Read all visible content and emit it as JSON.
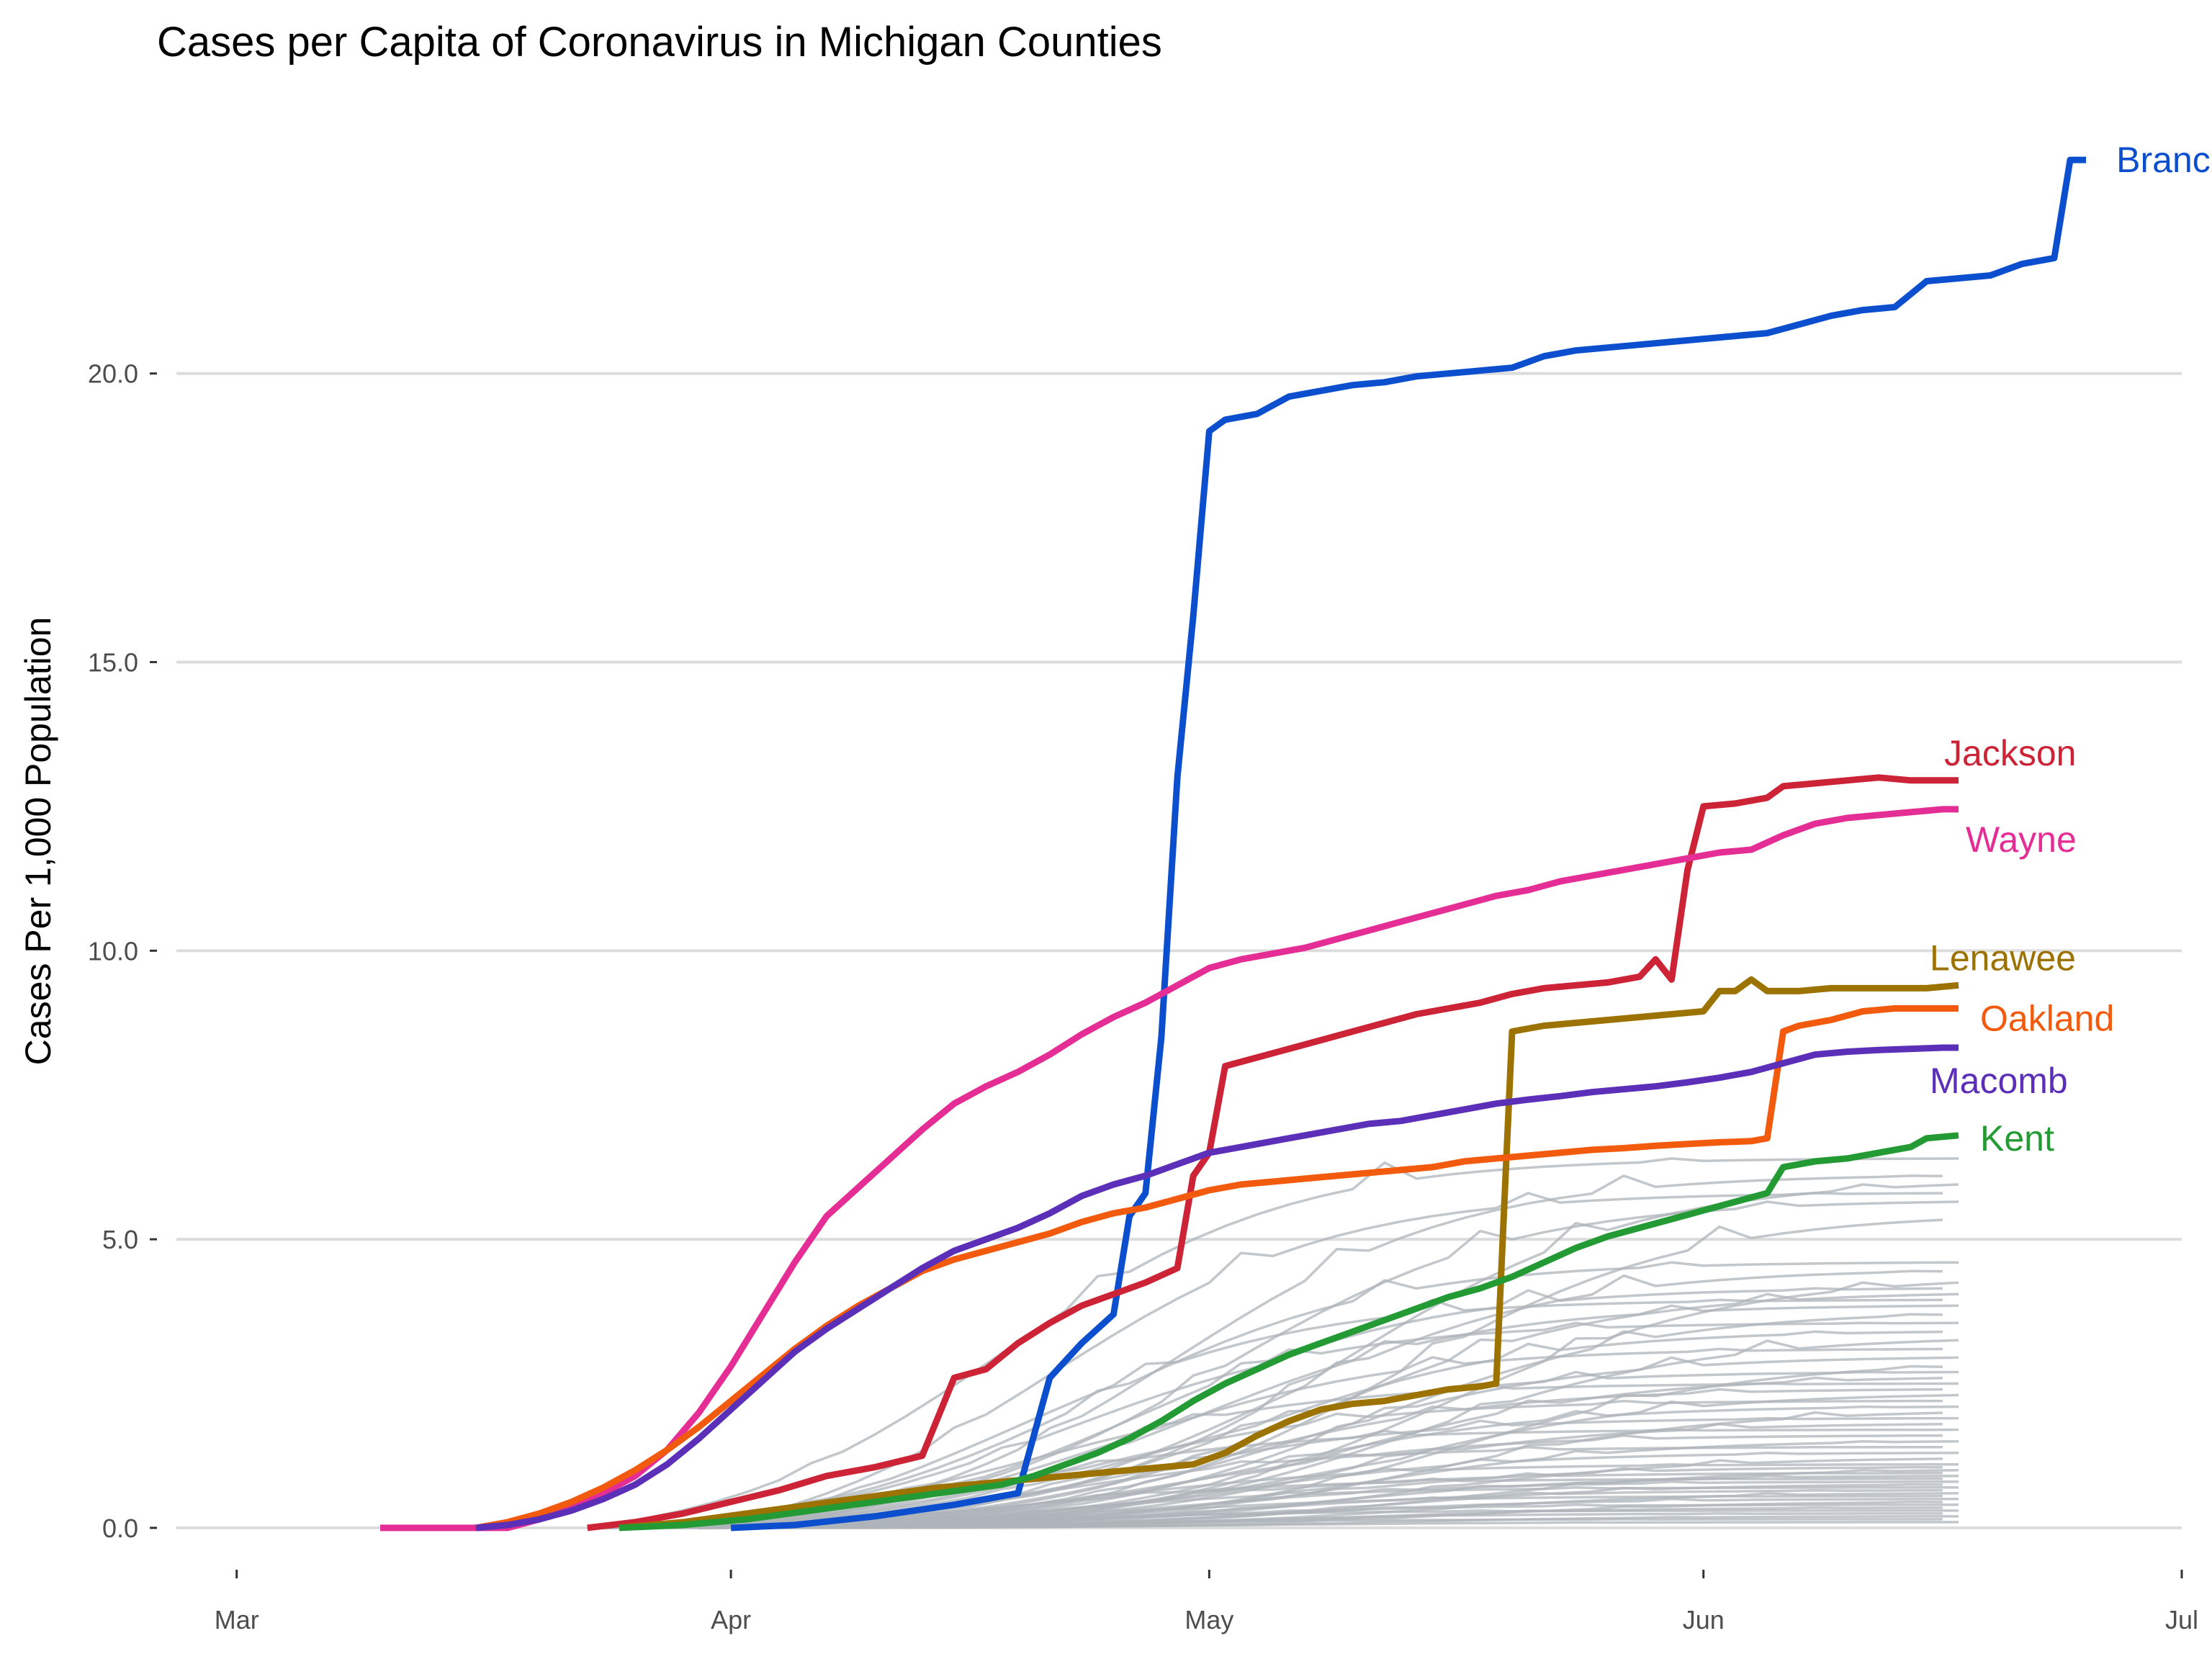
{
  "chart_data": {
    "type": "line",
    "title": "Cases per Capita of Coronavirus in Michigan Counties",
    "xlabel": "",
    "ylabel": "Cases Per 1,000 Population",
    "x_ticks": [
      "Mar",
      "Apr",
      "May",
      "Jun",
      "Jul"
    ],
    "x_tick_days": [
      0,
      31,
      61,
      92,
      122
    ],
    "xlim": [
      -5,
      122
    ],
    "y_ticks": [
      "0.0",
      "5.0",
      "10.0",
      "15.0",
      "20.0"
    ],
    "ylim": [
      -0.6,
      24.6
    ],
    "grid": true,
    "legend": "direct labels at line ends",
    "colors": {
      "Branch": "#0c4fce",
      "Jackson": "#cc2436",
      "Wayne": "#e52e95",
      "Lenawee": "#9c7200",
      "Oakland": "#f25a0d",
      "Macomb": "#5b2fb8",
      "Kent": "#239a34",
      "background_counties": "#aeb4ba"
    },
    "highlighted_series": [
      {
        "name": "Branch",
        "points": [
          [
            31,
            0
          ],
          [
            35,
            0.05
          ],
          [
            40,
            0.2
          ],
          [
            45,
            0.4
          ],
          [
            49,
            0.6
          ],
          [
            51,
            2.6
          ],
          [
            53,
            3.2
          ],
          [
            55,
            3.7
          ],
          [
            56,
            5.4
          ],
          [
            57,
            5.8
          ],
          [
            58,
            8.5
          ],
          [
            59,
            13
          ],
          [
            60,
            15.8
          ],
          [
            61,
            19
          ],
          [
            62,
            19.2
          ],
          [
            64,
            19.3
          ],
          [
            66,
            19.6
          ],
          [
            68,
            19.7
          ],
          [
            70,
            19.8
          ],
          [
            72,
            19.85
          ],
          [
            74,
            19.95
          ],
          [
            76,
            20
          ],
          [
            78,
            20.05
          ],
          [
            80,
            20.1
          ],
          [
            82,
            20.3
          ],
          [
            84,
            20.4
          ],
          [
            86,
            20.45
          ],
          [
            88,
            20.5
          ],
          [
            90,
            20.55
          ],
          [
            92,
            20.6
          ],
          [
            94,
            20.65
          ],
          [
            96,
            20.7
          ],
          [
            98,
            20.85
          ],
          [
            100,
            21
          ],
          [
            102,
            21.1
          ],
          [
            104,
            21.15
          ],
          [
            106,
            21.6
          ],
          [
            108,
            21.65
          ],
          [
            110,
            21.7
          ],
          [
            112,
            21.9
          ],
          [
            114,
            22
          ],
          [
            115,
            23.7
          ],
          [
            116,
            23.7
          ]
        ]
      },
      {
        "name": "Jackson",
        "points": [
          [
            22,
            0
          ],
          [
            25,
            0.1
          ],
          [
            28,
            0.25
          ],
          [
            31,
            0.45
          ],
          [
            34,
            0.65
          ],
          [
            37,
            0.9
          ],
          [
            40,
            1.05
          ],
          [
            43,
            1.25
          ],
          [
            45,
            2.6
          ],
          [
            47,
            2.75
          ],
          [
            49,
            3.2
          ],
          [
            51,
            3.55
          ],
          [
            53,
            3.85
          ],
          [
            55,
            4.05
          ],
          [
            57,
            4.25
          ],
          [
            59,
            4.5
          ],
          [
            60,
            6.1
          ],
          [
            61,
            6.5
          ],
          [
            62,
            8
          ],
          [
            64,
            8.15
          ],
          [
            66,
            8.3
          ],
          [
            68,
            8.45
          ],
          [
            70,
            8.6
          ],
          [
            72,
            8.75
          ],
          [
            74,
            8.9
          ],
          [
            76,
            9
          ],
          [
            78,
            9.1
          ],
          [
            80,
            9.25
          ],
          [
            82,
            9.35
          ],
          [
            84,
            9.4
          ],
          [
            86,
            9.45
          ],
          [
            88,
            9.55
          ],
          [
            89,
            9.85
          ],
          [
            90,
            9.5
          ],
          [
            91,
            11.4
          ],
          [
            92,
            12.5
          ],
          [
            94,
            12.55
          ],
          [
            96,
            12.65
          ],
          [
            97,
            12.85
          ],
          [
            99,
            12.9
          ],
          [
            101,
            12.95
          ],
          [
            103,
            13
          ],
          [
            105,
            12.95
          ],
          [
            107,
            12.95
          ],
          [
            108,
            12.95
          ]
        ]
      },
      {
        "name": "Wayne",
        "points": [
          [
            9,
            0
          ],
          [
            12,
            0
          ],
          [
            15,
            0
          ],
          [
            17,
            0
          ],
          [
            19,
            0.15
          ],
          [
            21,
            0.35
          ],
          [
            23,
            0.6
          ],
          [
            25,
            0.9
          ],
          [
            27,
            1.35
          ],
          [
            29,
            2
          ],
          [
            31,
            2.8
          ],
          [
            33,
            3.7
          ],
          [
            35,
            4.6
          ],
          [
            37,
            5.4
          ],
          [
            39,
            5.9
          ],
          [
            41,
            6.4
          ],
          [
            43,
            6.9
          ],
          [
            45,
            7.35
          ],
          [
            47,
            7.65
          ],
          [
            49,
            7.9
          ],
          [
            51,
            8.2
          ],
          [
            53,
            8.55
          ],
          [
            55,
            8.85
          ],
          [
            57,
            9.1
          ],
          [
            59,
            9.4
          ],
          [
            61,
            9.7
          ],
          [
            63,
            9.85
          ],
          [
            65,
            9.95
          ],
          [
            67,
            10.05
          ],
          [
            69,
            10.2
          ],
          [
            71,
            10.35
          ],
          [
            73,
            10.5
          ],
          [
            75,
            10.65
          ],
          [
            77,
            10.8
          ],
          [
            79,
            10.95
          ],
          [
            81,
            11.05
          ],
          [
            83,
            11.2
          ],
          [
            85,
            11.3
          ],
          [
            87,
            11.4
          ],
          [
            89,
            11.5
          ],
          [
            91,
            11.6
          ],
          [
            93,
            11.7
          ],
          [
            95,
            11.75
          ],
          [
            97,
            12
          ],
          [
            99,
            12.2
          ],
          [
            101,
            12.3
          ],
          [
            103,
            12.35
          ],
          [
            105,
            12.4
          ],
          [
            107,
            12.45
          ],
          [
            108,
            12.45
          ]
        ]
      },
      {
        "name": "Lenawee",
        "points": [
          [
            24,
            0
          ],
          [
            28,
            0.1
          ],
          [
            32,
            0.25
          ],
          [
            36,
            0.4
          ],
          [
            40,
            0.55
          ],
          [
            44,
            0.7
          ],
          [
            48,
            0.8
          ],
          [
            52,
            0.9
          ],
          [
            56,
            1
          ],
          [
            60,
            1.1
          ],
          [
            62,
            1.3
          ],
          [
            64,
            1.6
          ],
          [
            66,
            1.85
          ],
          [
            68,
            2.05
          ],
          [
            70,
            2.15
          ],
          [
            72,
            2.2
          ],
          [
            74,
            2.3
          ],
          [
            76,
            2.4
          ],
          [
            78,
            2.45
          ],
          [
            79,
            2.5
          ],
          [
            80,
            8.6
          ],
          [
            82,
            8.7
          ],
          [
            84,
            8.75
          ],
          [
            86,
            8.8
          ],
          [
            88,
            8.85
          ],
          [
            90,
            8.9
          ],
          [
            92,
            8.95
          ],
          [
            93,
            9.3
          ],
          [
            94,
            9.3
          ],
          [
            95,
            9.5
          ],
          [
            96,
            9.3
          ],
          [
            98,
            9.3
          ],
          [
            100,
            9.35
          ],
          [
            102,
            9.35
          ],
          [
            104,
            9.35
          ],
          [
            106,
            9.35
          ],
          [
            108,
            9.4
          ]
        ]
      },
      {
        "name": "Oakland",
        "points": [
          [
            15,
            0
          ],
          [
            17,
            0.1
          ],
          [
            19,
            0.25
          ],
          [
            21,
            0.45
          ],
          [
            23,
            0.7
          ],
          [
            25,
            1
          ],
          [
            27,
            1.35
          ],
          [
            29,
            1.75
          ],
          [
            31,
            2.2
          ],
          [
            33,
            2.65
          ],
          [
            35,
            3.1
          ],
          [
            37,
            3.5
          ],
          [
            39,
            3.85
          ],
          [
            41,
            4.15
          ],
          [
            43,
            4.45
          ],
          [
            45,
            4.65
          ],
          [
            47,
            4.8
          ],
          [
            49,
            4.95
          ],
          [
            51,
            5.1
          ],
          [
            53,
            5.3
          ],
          [
            55,
            5.45
          ],
          [
            57,
            5.55
          ],
          [
            59,
            5.7
          ],
          [
            61,
            5.85
          ],
          [
            63,
            5.95
          ],
          [
            65,
            6
          ],
          [
            67,
            6.05
          ],
          [
            69,
            6.1
          ],
          [
            71,
            6.15
          ],
          [
            73,
            6.2
          ],
          [
            75,
            6.25
          ],
          [
            77,
            6.35
          ],
          [
            79,
            6.4
          ],
          [
            81,
            6.45
          ],
          [
            83,
            6.5
          ],
          [
            85,
            6.55
          ],
          [
            87,
            6.58
          ],
          [
            89,
            6.62
          ],
          [
            91,
            6.65
          ],
          [
            93,
            6.68
          ],
          [
            95,
            6.7
          ],
          [
            96,
            6.75
          ],
          [
            97,
            8.6
          ],
          [
            98,
            8.7
          ],
          [
            100,
            8.8
          ],
          [
            102,
            8.95
          ],
          [
            104,
            9
          ],
          [
            106,
            9
          ],
          [
            108,
            9
          ]
        ]
      },
      {
        "name": "Macomb",
        "points": [
          [
            15,
            0
          ],
          [
            17,
            0.05
          ],
          [
            19,
            0.15
          ],
          [
            21,
            0.3
          ],
          [
            23,
            0.5
          ],
          [
            25,
            0.75
          ],
          [
            27,
            1.1
          ],
          [
            29,
            1.55
          ],
          [
            31,
            2.05
          ],
          [
            33,
            2.55
          ],
          [
            35,
            3.05
          ],
          [
            37,
            3.45
          ],
          [
            39,
            3.8
          ],
          [
            41,
            4.15
          ],
          [
            43,
            4.5
          ],
          [
            45,
            4.8
          ],
          [
            47,
            5
          ],
          [
            49,
            5.2
          ],
          [
            51,
            5.45
          ],
          [
            53,
            5.75
          ],
          [
            55,
            5.95
          ],
          [
            57,
            6.1
          ],
          [
            59,
            6.3
          ],
          [
            61,
            6.5
          ],
          [
            63,
            6.6
          ],
          [
            65,
            6.7
          ],
          [
            67,
            6.8
          ],
          [
            69,
            6.9
          ],
          [
            71,
            7
          ],
          [
            73,
            7.05
          ],
          [
            75,
            7.15
          ],
          [
            77,
            7.25
          ],
          [
            79,
            7.35
          ],
          [
            81,
            7.42
          ],
          [
            83,
            7.48
          ],
          [
            85,
            7.55
          ],
          [
            87,
            7.6
          ],
          [
            89,
            7.65
          ],
          [
            91,
            7.72
          ],
          [
            93,
            7.8
          ],
          [
            95,
            7.9
          ],
          [
            97,
            8.05
          ],
          [
            99,
            8.2
          ],
          [
            101,
            8.25
          ],
          [
            103,
            8.28
          ],
          [
            105,
            8.3
          ],
          [
            107,
            8.32
          ],
          [
            108,
            8.32
          ]
        ]
      },
      {
        "name": "Kent",
        "points": [
          [
            24,
            0
          ],
          [
            28,
            0.05
          ],
          [
            32,
            0.15
          ],
          [
            36,
            0.3
          ],
          [
            40,
            0.45
          ],
          [
            44,
            0.6
          ],
          [
            48,
            0.75
          ],
          [
            50,
            0.9
          ],
          [
            52,
            1.1
          ],
          [
            54,
            1.3
          ],
          [
            56,
            1.55
          ],
          [
            58,
            1.85
          ],
          [
            60,
            2.2
          ],
          [
            62,
            2.5
          ],
          [
            64,
            2.75
          ],
          [
            66,
            3
          ],
          [
            68,
            3.2
          ],
          [
            70,
            3.4
          ],
          [
            72,
            3.6
          ],
          [
            74,
            3.8
          ],
          [
            76,
            4
          ],
          [
            78,
            4.15
          ],
          [
            80,
            4.35
          ],
          [
            82,
            4.6
          ],
          [
            84,
            4.85
          ],
          [
            86,
            5.05
          ],
          [
            88,
            5.2
          ],
          [
            90,
            5.35
          ],
          [
            92,
            5.5
          ],
          [
            94,
            5.65
          ],
          [
            96,
            5.8
          ],
          [
            97,
            6.25
          ],
          [
            99,
            6.35
          ],
          [
            101,
            6.4
          ],
          [
            103,
            6.5
          ],
          [
            105,
            6.6
          ],
          [
            106,
            6.75
          ],
          [
            108,
            6.8
          ]
        ]
      }
    ],
    "background_series_final_values": [
      6.4,
      6.1,
      5.95,
      5.8,
      5.65,
      5.35,
      4.6,
      4.45,
      4.25,
      4.15,
      4.05,
      3.95,
      3.85,
      3.7,
      3.55,
      3.4,
      3.25,
      3.1,
      2.95,
      2.8,
      2.7,
      2.6,
      2.5,
      2.4,
      2.3,
      2.2,
      2.1,
      2,
      1.9,
      1.8,
      1.7,
      1.6,
      1.5,
      1.4,
      1.3,
      1.2,
      1.1,
      1.05,
      1,
      0.95,
      0.9,
      0.85,
      0.8,
      0.75,
      0.7,
      0.65,
      0.6,
      0.55,
      0.5,
      0.45,
      0.4,
      0.35,
      0.3,
      0.25,
      0.2,
      0.15,
      0.1
    ]
  }
}
